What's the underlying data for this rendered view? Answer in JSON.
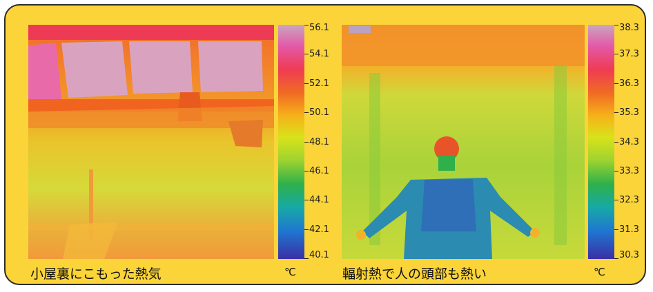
{
  "panels": [
    {
      "caption": "小屋裏にこもった熱気",
      "unit": "℃",
      "scale": [
        "56.1",
        "54.1",
        "52.1",
        "50.1",
        "48.1",
        "46.1",
        "44.1",
        "42.1",
        "40.1"
      ]
    },
    {
      "caption": "輻射熱で人の頭部も熱い",
      "unit": "℃",
      "scale": [
        "38.3",
        "37.3",
        "36.3",
        "35.3",
        "34.3",
        "33.3",
        "32.3",
        "31.3",
        "30.3"
      ]
    }
  ],
  "colors": {
    "frame": "#fbd43a",
    "border": "#2b2b2b"
  }
}
